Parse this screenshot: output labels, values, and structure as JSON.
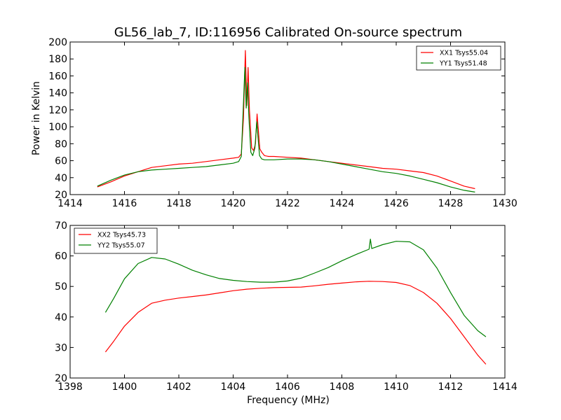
{
  "chart_data": [
    {
      "type": "line",
      "title": "GL56_lab_7, ID:116956 Calibrated On-source spectrum",
      "xlabel": "",
      "ylabel": "Power in Kelvin",
      "xlim": [
        1414,
        1430
      ],
      "ylim": [
        20,
        200
      ],
      "xticks": [
        1414,
        1416,
        1418,
        1420,
        1422,
        1424,
        1426,
        1428,
        1430
      ],
      "yticks": [
        20,
        40,
        60,
        80,
        100,
        120,
        140,
        160,
        180,
        200
      ],
      "grid": false,
      "legend": "top-right",
      "series": [
        {
          "name": "XX1 Tsys55.04",
          "color": "#ff0000",
          "x": [
            1415.0,
            1415.5,
            1416.0,
            1416.5,
            1417.0,
            1417.5,
            1418.0,
            1418.5,
            1419.0,
            1419.5,
            1420.0,
            1420.2,
            1420.3,
            1420.38,
            1420.45,
            1420.5,
            1420.55,
            1420.6,
            1420.68,
            1420.75,
            1420.82,
            1420.88,
            1420.93,
            1420.98,
            1421.05,
            1421.15,
            1421.3,
            1421.5,
            1422.0,
            1422.5,
            1423.0,
            1423.5,
            1424.0,
            1424.5,
            1425.0,
            1425.5,
            1426.0,
            1426.5,
            1427.0,
            1427.5,
            1428.0,
            1428.5,
            1428.9
          ],
          "y": [
            29,
            35,
            42,
            47,
            52,
            54,
            56,
            57,
            59,
            61,
            63,
            64,
            68,
            110,
            190,
            125,
            170,
            120,
            75,
            72,
            80,
            115,
            95,
            74,
            70,
            66,
            65,
            65,
            64,
            63,
            61,
            59,
            57,
            55,
            53,
            51,
            50,
            48,
            46,
            42,
            36,
            30,
            27
          ]
        },
        {
          "name": "YY1 Tsys51.48",
          "color": "#008000",
          "x": [
            1415.0,
            1415.5,
            1416.0,
            1416.5,
            1417.0,
            1417.5,
            1418.0,
            1418.5,
            1419.0,
            1419.5,
            1420.0,
            1420.2,
            1420.3,
            1420.37,
            1420.43,
            1420.48,
            1420.53,
            1420.58,
            1420.65,
            1420.72,
            1420.8,
            1420.87,
            1420.92,
            1420.97,
            1421.05,
            1421.15,
            1421.3,
            1421.5,
            1422.0,
            1422.5,
            1423.0,
            1423.5,
            1424.0,
            1424.5,
            1425.0,
            1425.5,
            1426.0,
            1426.5,
            1427.0,
            1427.5,
            1428.0,
            1428.5,
            1428.9
          ],
          "y": [
            30,
            37,
            43,
            47,
            49,
            50,
            51,
            52,
            53,
            55,
            57,
            59,
            65,
            120,
            170,
            122,
            152,
            110,
            70,
            66,
            75,
            106,
            85,
            66,
            62,
            61,
            61,
            61,
            62,
            62,
            61,
            59,
            56,
            53,
            50,
            47,
            45,
            42,
            38,
            34,
            29,
            25,
            23
          ]
        }
      ]
    },
    {
      "type": "line",
      "title": "",
      "xlabel": "Frequency (MHz)",
      "ylabel": "",
      "xlim": [
        1398,
        1414
      ],
      "ylim": [
        20,
        70
      ],
      "xticks": [
        1398,
        1400,
        1402,
        1404,
        1406,
        1408,
        1410,
        1412,
        1414
      ],
      "yticks": [
        20,
        30,
        40,
        50,
        60,
        70
      ],
      "grid": false,
      "legend": "top-left",
      "series": [
        {
          "name": "XX2 Tsys45.73",
          "color": "#ff0000",
          "x": [
            1399.3,
            1399.6,
            1400.0,
            1400.5,
            1401.0,
            1401.5,
            1402.0,
            1402.5,
            1403.0,
            1403.5,
            1404.0,
            1404.5,
            1405.0,
            1405.5,
            1406.0,
            1406.5,
            1407.0,
            1407.5,
            1408.0,
            1408.5,
            1409.0,
            1409.5,
            1410.0,
            1410.5,
            1411.0,
            1411.5,
            1412.0,
            1412.5,
            1413.0,
            1413.3
          ],
          "y": [
            28.5,
            32,
            37,
            41.5,
            44.5,
            45.5,
            46.2,
            46.7,
            47.2,
            47.9,
            48.6,
            49.1,
            49.4,
            49.6,
            49.7,
            49.8,
            50.2,
            50.7,
            51.1,
            51.5,
            51.7,
            51.6,
            51.3,
            50.3,
            48,
            44.5,
            39.5,
            33.5,
            27.5,
            24.5
          ]
        },
        {
          "name": "YY2 Tsys55.07",
          "color": "#008000",
          "x": [
            1399.3,
            1399.6,
            1400.0,
            1400.5,
            1401.0,
            1401.5,
            1402.0,
            1402.5,
            1403.0,
            1403.5,
            1404.0,
            1404.5,
            1405.0,
            1405.5,
            1406.0,
            1406.5,
            1407.0,
            1407.5,
            1408.0,
            1408.5,
            1409.0,
            1409.05,
            1409.1,
            1409.5,
            1410.0,
            1410.5,
            1411.0,
            1411.5,
            1412.0,
            1412.5,
            1413.0,
            1413.3
          ],
          "y": [
            41.5,
            46,
            52.5,
            57.5,
            59.5,
            59,
            57.3,
            55.3,
            53.8,
            52.6,
            52,
            51.6,
            51.4,
            51.4,
            51.8,
            52.7,
            54.4,
            56.2,
            58.4,
            60.4,
            62.2,
            65.5,
            62.4,
            63.7,
            64.8,
            64.6,
            62,
            56,
            48,
            40.5,
            35.5,
            33.5
          ]
        }
      ]
    }
  ]
}
